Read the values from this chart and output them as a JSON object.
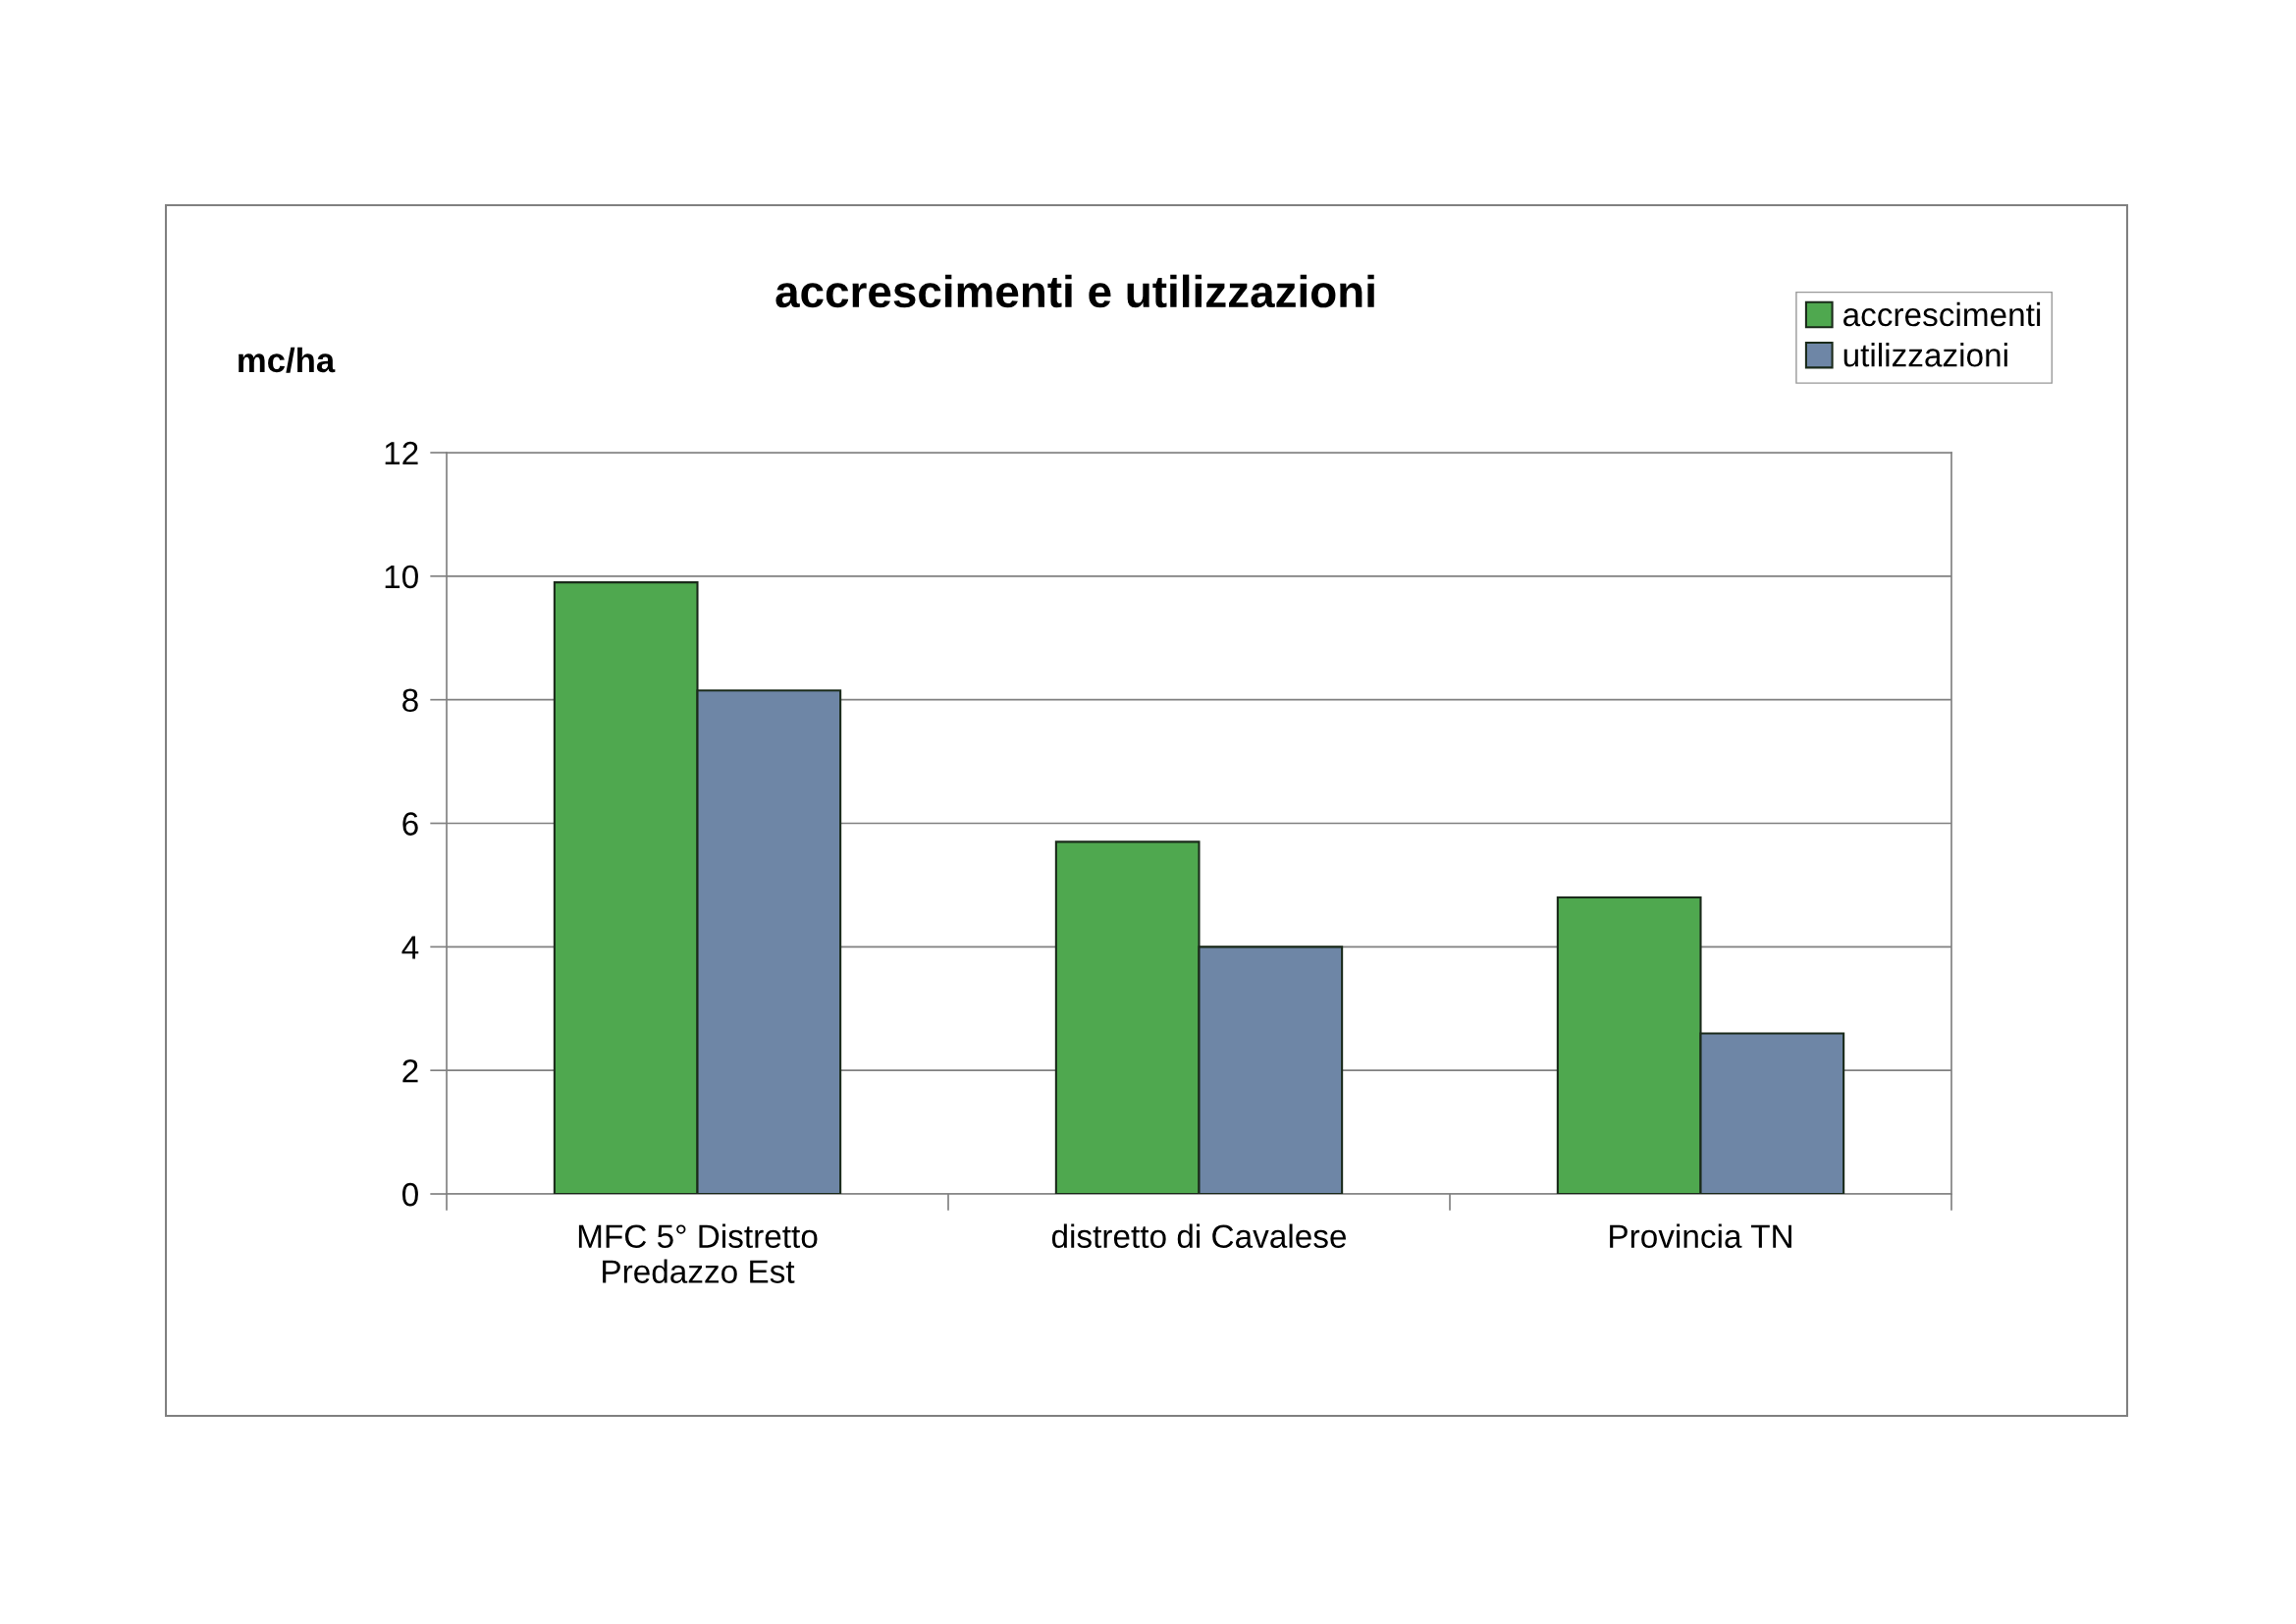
{
  "chart_data": {
    "type": "bar",
    "title": "accrescimenti e utilizzazioni",
    "ylabel": "mc/ha",
    "categories": [
      "MFC 5° Distretto\nPredazzo Est",
      "distretto di Cavalese",
      "Provincia TN"
    ],
    "series": [
      {
        "name": "accrescimenti",
        "color": "#4fa84f",
        "values": [
          9.9,
          5.7,
          4.8
        ]
      },
      {
        "name": "utilizzazioni",
        "color": "#6e86a6",
        "values": [
          8.15,
          4.0,
          2.6
        ]
      }
    ],
    "ylim": [
      0,
      12
    ],
    "yticks": [
      0,
      2,
      4,
      6,
      8,
      10,
      12
    ],
    "grid": "y",
    "legend": "top right"
  }
}
